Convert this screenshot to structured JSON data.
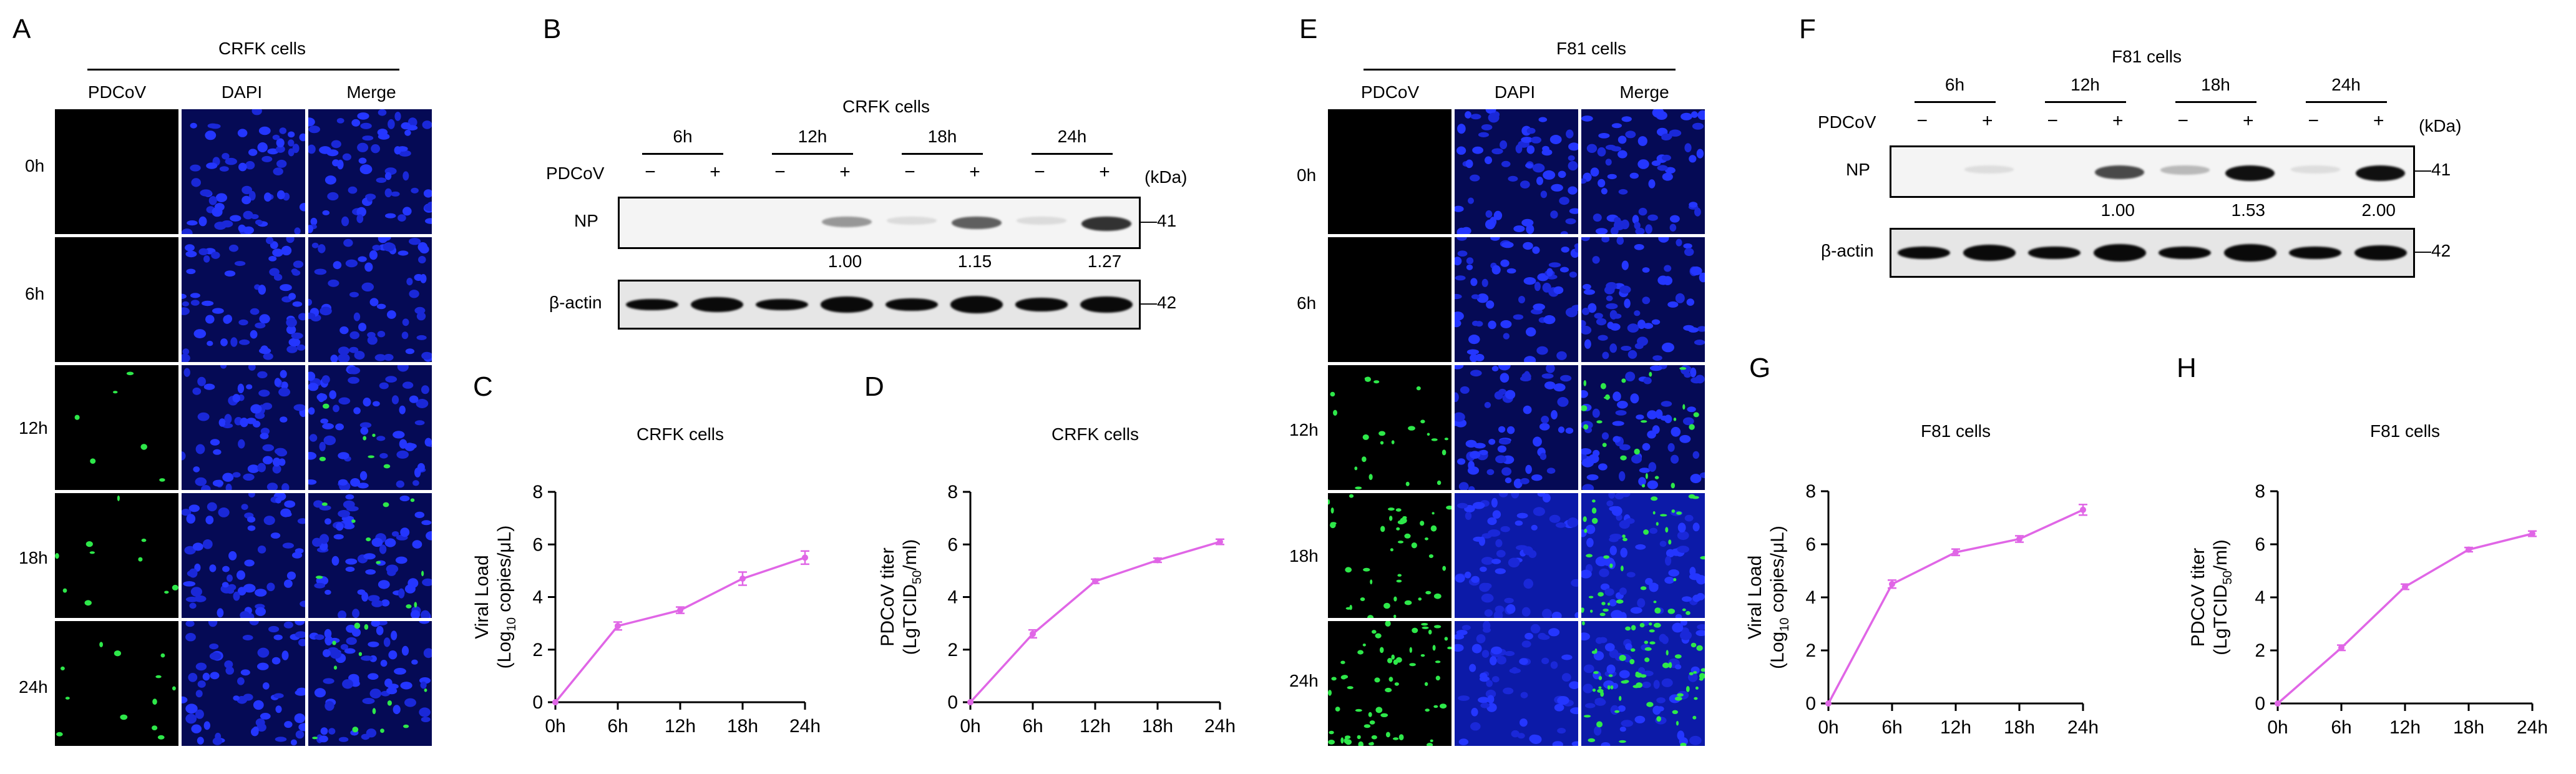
{
  "panels": {
    "A": {
      "letter": "A",
      "title": "CRFK cells",
      "cols": [
        "PDCoV",
        "DAPI",
        "Merge"
      ],
      "rows": [
        "0h",
        "6h",
        "12h",
        "18h",
        "24h"
      ],
      "green_density": [
        0,
        0,
        6,
        10,
        12
      ]
    },
    "B": {
      "letter": "B",
      "title": "CRFK cells",
      "times": [
        "6h",
        "12h",
        "18h",
        "24h"
      ],
      "pdcov_label": "PDCoV",
      "minus": "−",
      "plus": "+",
      "kda": "(kDa)",
      "np_label": "NP",
      "actin_label": "β-actin",
      "np_kda": "41",
      "actin_kda": "42",
      "ratios": [
        "1.00",
        "1.15",
        "1.27"
      ],
      "np_intensity": [
        0,
        0,
        0,
        0.35,
        0.05,
        0.6,
        0.05,
        0.8
      ]
    },
    "E": {
      "letter": "E",
      "title": "F81 cells",
      "cols": [
        "PDCoV",
        "DAPI",
        "Merge"
      ],
      "rows": [
        "0h",
        "6h",
        "12h",
        "18h",
        "24h"
      ],
      "green_density": [
        0,
        0,
        22,
        40,
        60
      ]
    },
    "F": {
      "letter": "F",
      "title": "F81 cells",
      "times": [
        "6h",
        "12h",
        "18h",
        "24h"
      ],
      "pdcov_label": "PDCoV",
      "minus": "−",
      "plus": "+",
      "kda": "(kDa)",
      "np_label": "NP",
      "actin_label": "β-actin",
      "np_kda": "41",
      "actin_kda": "42",
      "ratios": [
        "1.00",
        "1.53",
        "2.00"
      ],
      "np_intensity": [
        0,
        0.04,
        0,
        0.7,
        0.2,
        0.95,
        0.04,
        0.95
      ]
    }
  },
  "chart_data": [
    {
      "panel": "C",
      "type": "line",
      "title": "CRFK cells",
      "ylabel": "Viral Load",
      "ylabel2": "(Log",
      "ylabel_sub": "10",
      "ylabel3": " copies/μL)",
      "categories": [
        "0h",
        "6h",
        "12h",
        "18h",
        "24h"
      ],
      "values": [
        0,
        2.9,
        3.5,
        4.7,
        5.5
      ],
      "errors": [
        0,
        0.15,
        0.12,
        0.25,
        0.25
      ],
      "ylim": [
        0,
        8
      ],
      "yticks": [
        0,
        2,
        4,
        6,
        8
      ],
      "color": "#e066e6"
    },
    {
      "panel": "D",
      "type": "line",
      "title": "CRFK cells",
      "ylabel": "PDCoV titer",
      "ylabel2": "(LgTCID",
      "ylabel_sub": "50",
      "ylabel3": "/ml)",
      "categories": [
        "0h",
        "6h",
        "12h",
        "18h",
        "24h"
      ],
      "values": [
        0,
        2.6,
        4.6,
        5.4,
        6.1
      ],
      "errors": [
        0,
        0.15,
        0.08,
        0.08,
        0.1
      ],
      "ylim": [
        0,
        8
      ],
      "yticks": [
        0,
        2,
        4,
        6,
        8
      ],
      "color": "#e066e6"
    },
    {
      "panel": "G",
      "type": "line",
      "title": "F81 cells",
      "ylabel": "Viral Load",
      "ylabel2": "(Log",
      "ylabel_sub": "10",
      "ylabel3": " copies/μL)",
      "categories": [
        "0h",
        "6h",
        "12h",
        "18h",
        "24h"
      ],
      "values": [
        0,
        4.5,
        5.7,
        6.2,
        7.3
      ],
      "errors": [
        0,
        0.15,
        0.12,
        0.12,
        0.2
      ],
      "ylim": [
        0,
        8
      ],
      "yticks": [
        0,
        2,
        4,
        6,
        8
      ],
      "color": "#e066e6"
    },
    {
      "panel": "H",
      "type": "line",
      "title": "F81 cells",
      "ylabel": "PDCoV titer",
      "ylabel2": "(LgTCID",
      "ylabel_sub": "50",
      "ylabel3": "/ml)",
      "categories": [
        "0h",
        "6h",
        "12h",
        "18h",
        "24h"
      ],
      "values": [
        0,
        2.1,
        4.4,
        5.8,
        6.4
      ],
      "errors": [
        0,
        0.1,
        0.1,
        0.08,
        0.1
      ],
      "ylim": [
        0,
        8
      ],
      "yticks": [
        0,
        2,
        4,
        6,
        8
      ],
      "color": "#e066e6"
    }
  ]
}
